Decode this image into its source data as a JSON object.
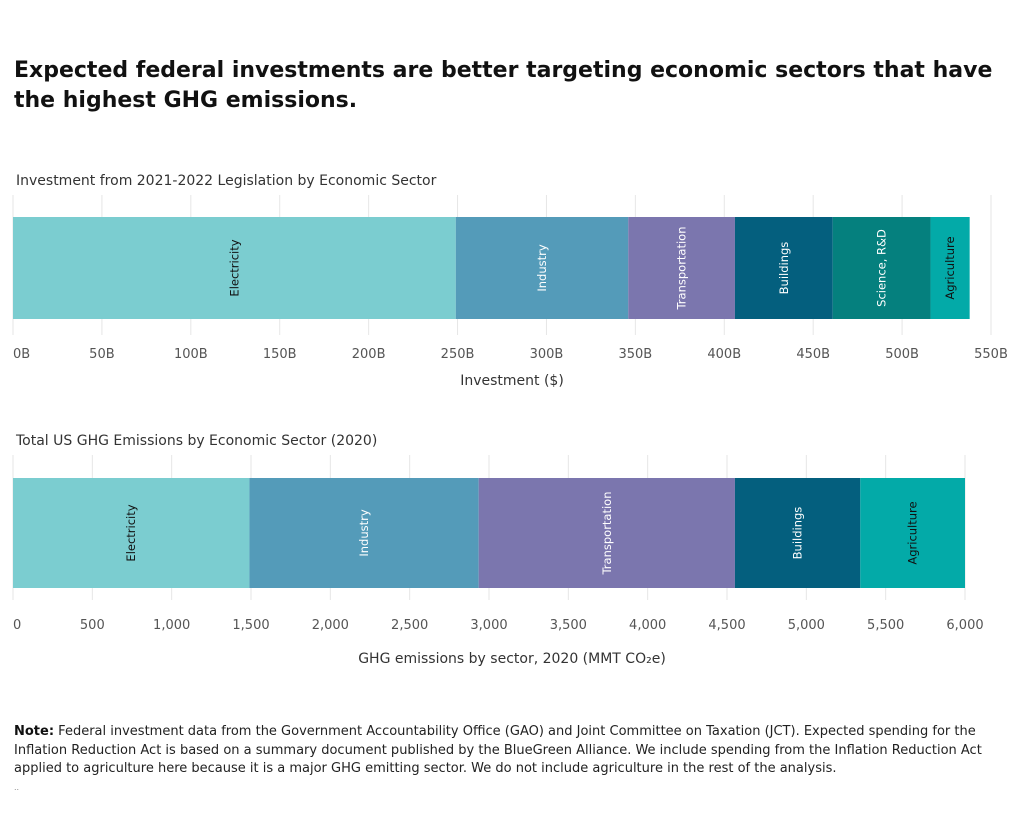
{
  "headline": "Expected federal investments are better targeting economic sectors that have the highest GHG emissions.",
  "colors": {
    "Electricity": "#7bcdd0",
    "Industry": "#549bb9",
    "Transportation": "#7b76ae",
    "Buildings": "#045f7e",
    "Science, R&D": "#05807e",
    "Agriculture": "#03aaa8",
    "gridline": "#e6e6e6",
    "label_dark": "#111111",
    "label_light": "#ffffff"
  },
  "chart_data": [
    {
      "type": "bar",
      "orientation": "horizontal-stacked",
      "title": "Investment from 2021-2022 Legislation by Economic Sector",
      "xlabel": "Investment ($)",
      "ylabel": "",
      "xlim": [
        0,
        550
      ],
      "xticks": [
        0,
        50,
        100,
        150,
        200,
        250,
        300,
        350,
        400,
        450,
        500,
        550
      ],
      "tick_labels": [
        "0B",
        "50B",
        "100B",
        "150B",
        "200B",
        "250B",
        "300B",
        "350B",
        "400B",
        "450B",
        "500B",
        "550B"
      ],
      "unit": "billion USD",
      "grid": true,
      "series": [
        {
          "name": "Electricity",
          "value": 249
        },
        {
          "name": "Industry",
          "value": 97
        },
        {
          "name": "Transportation",
          "value": 60
        },
        {
          "name": "Buildings",
          "value": 55
        },
        {
          "name": "Science, R&D",
          "value": 55
        },
        {
          "name": "Agriculture",
          "value": 22
        }
      ]
    },
    {
      "type": "bar",
      "orientation": "horizontal-stacked",
      "title": "Total US GHG Emissions by Economic Sector (2020)",
      "xlabel": "GHG emissions by sector, 2020 (MMT CO₂e)",
      "ylabel": "",
      "xlim": [
        0,
        6000
      ],
      "xticks": [
        0,
        500,
        1000,
        1500,
        2000,
        2500,
        3000,
        3500,
        4000,
        4500,
        5000,
        5500,
        6000
      ],
      "tick_labels": [
        "0",
        "500",
        "1,000",
        "1,500",
        "2,000",
        "2,500",
        "3,000",
        "3,500",
        "4,000",
        "4,500",
        "5,000",
        "5,500",
        "6,000"
      ],
      "unit": "MMT CO2e",
      "grid": true,
      "series": [
        {
          "name": "Electricity",
          "value": 1490
        },
        {
          "name": "Industry",
          "value": 1445
        },
        {
          "name": "Transportation",
          "value": 1615
        },
        {
          "name": "Buildings",
          "value": 790
        },
        {
          "name": "Agriculture",
          "value": 660
        }
      ]
    }
  ],
  "note": {
    "label": "Note:",
    "text": " Federal investment data from the Government Accountability Office (GAO) and Joint Committee on Taxation (JCT). Expected spending for the Inflation Reduction Act is based on a summary document published by the BlueGreen Alliance. We include spending from the Inflation Reduction Act applied to agriculture here because it is a major GHG emitting sector. We do not include agriculture in the rest of the analysis.",
    "trailing": ".."
  }
}
